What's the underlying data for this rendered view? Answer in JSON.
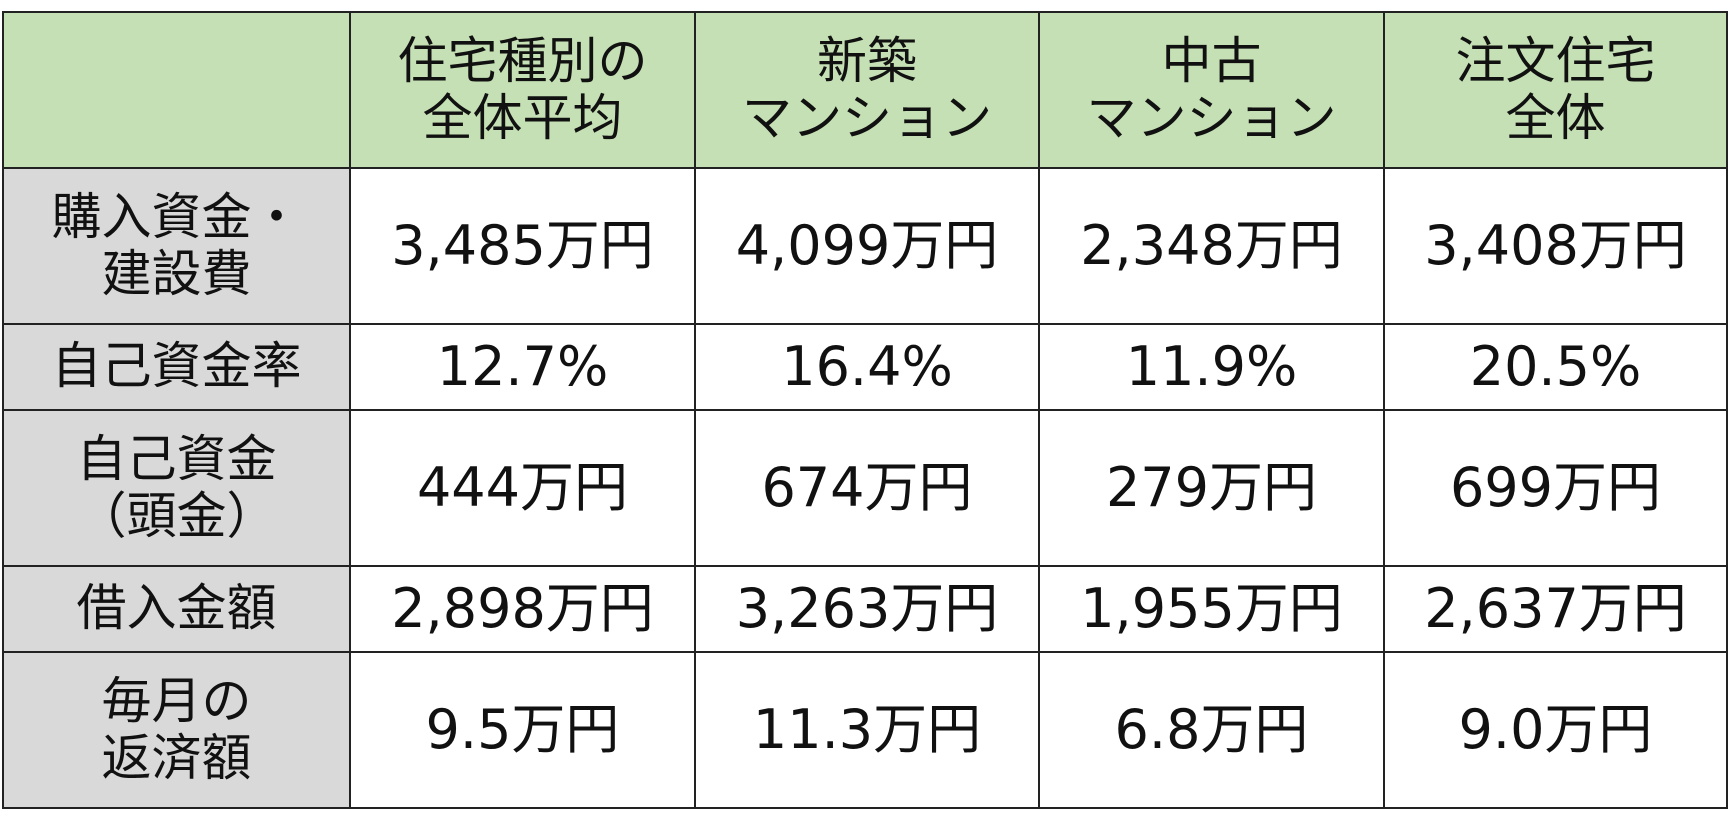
{
  "table": {
    "header": [
      "住宅種別の\n全体平均",
      "新築\nマンション",
      "中古\nマンション",
      "注文住宅\n全体"
    ],
    "rows": [
      {
        "label": "購入資金・\n建設費",
        "cells": [
          "3,485万円",
          "4,099万円",
          "2,348万円",
          "3,408万円"
        ]
      },
      {
        "label": "自己資金率",
        "cells": [
          "12.7%",
          "16.4%",
          "11.9%",
          "20.5%"
        ]
      },
      {
        "label": "自己資金\n（頭金）",
        "cells": [
          "444万円",
          "674万円",
          "279万円",
          "699万円"
        ]
      },
      {
        "label": "借入金額",
        "cells": [
          "2,898万円",
          "3,263万円",
          "1,955万円",
          "2,637万円"
        ]
      },
      {
        "label": "毎月の\n返済額",
        "cells": [
          "9.5万円",
          "11.3万円",
          "6.8万円",
          "9.0万円"
        ]
      }
    ]
  }
}
